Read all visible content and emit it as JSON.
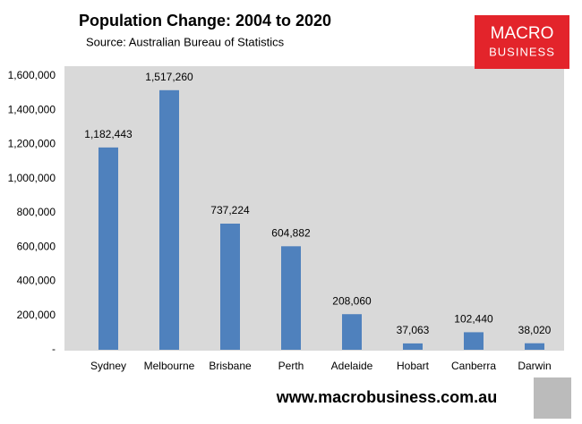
{
  "chart_data": {
    "type": "bar",
    "title": "Population Change: 2004 to 2020",
    "subtitle": "Source: Australian Bureau of Statistics",
    "logo": [
      "MACRO",
      "BUSINESS"
    ],
    "footer": "www.macrobusiness.com.au",
    "categories": [
      "Sydney",
      "Melbourne",
      "Brisbane",
      "Perth",
      "Adelaide",
      "Hobart",
      "Canberra",
      "Darwin"
    ],
    "values": [
      1182443,
      1517260,
      737224,
      604882,
      208060,
      37063,
      102440,
      38020
    ],
    "value_labels": [
      "1,182,443",
      "1,517,260",
      "737,224",
      "604,882",
      "208,060",
      "37,063",
      "102,440",
      "38,020"
    ],
    "color": "#4f81bd",
    "ylim": [
      0,
      1600000
    ],
    "yticks": [
      {
        "value": 0,
        "label": "-"
      },
      {
        "value": 200000,
        "label": "200,000"
      },
      {
        "value": 400000,
        "label": "400,000"
      },
      {
        "value": 600000,
        "label": "600,000"
      },
      {
        "value": 800000,
        "label": "800,000"
      },
      {
        "value": 1000000,
        "label": "1,000,000"
      },
      {
        "value": 1200000,
        "label": "1,200,000"
      },
      {
        "value": 1400000,
        "label": "1,400,000"
      },
      {
        "value": 1600000,
        "label": "1,600,000"
      }
    ],
    "grid": false
  }
}
